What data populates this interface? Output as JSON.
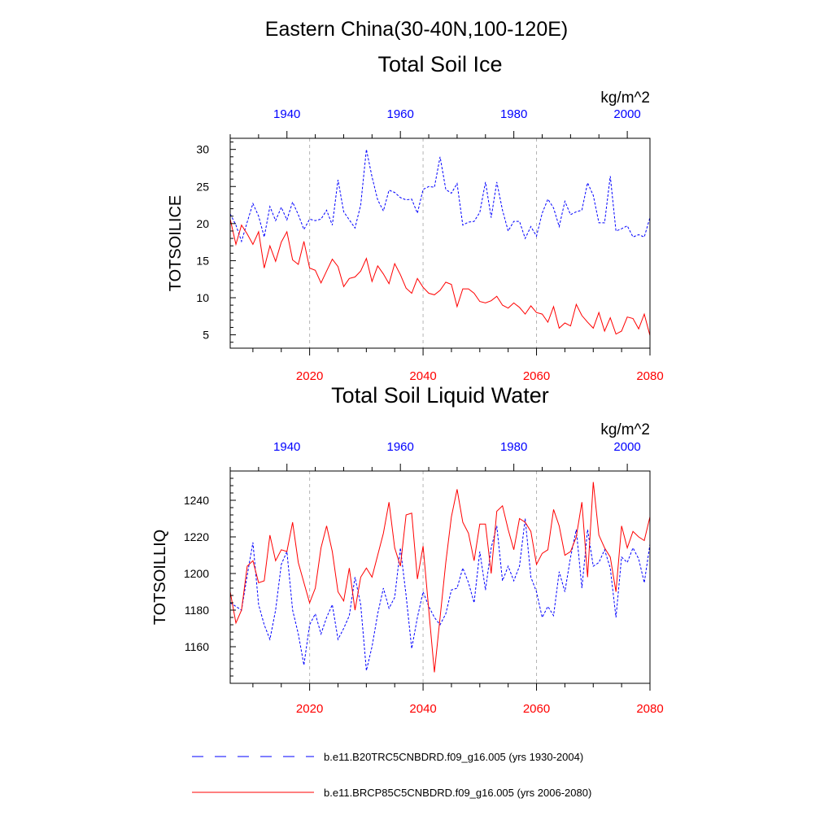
{
  "figure": {
    "title": "Eastern China(30-40N,100-120E)"
  },
  "colors": {
    "historical": "#0000ff",
    "future": "#ff0000",
    "frame": "#000000",
    "grid": "#b4b4b4"
  },
  "legend": {
    "placement": "bottom",
    "items": [
      {
        "label": "b.e11.B20TRC5CNBDRD.f09_g16.005 (yrs 1930-2004)",
        "color": "#0000ff",
        "style": "dashed"
      },
      {
        "label": "b.e11.BRCP85C5CNBDRD.f09_g16.005 (yrs 2006-2080)",
        "color": "#ff0000",
        "style": "solid"
      }
    ]
  },
  "chart_data": [
    {
      "type": "line",
      "title": "Total Soil Ice",
      "ylabel": "TOTSOILICE",
      "units": "kg/m^2",
      "grid": "vertical dashed at bottom-axis major ticks",
      "ylim": [
        3.2,
        31.5
      ],
      "yticks": [
        5,
        10,
        15,
        20,
        25,
        30
      ],
      "bottom_axis": {
        "xlim": [
          2006,
          2080
        ],
        "ticks": [
          2020,
          2040,
          2060,
          2080
        ],
        "color": "#ff0000"
      },
      "top_axis": {
        "xlim": [
          1930,
          2004
        ],
        "ticks": [
          1940,
          1960,
          1980,
          2000
        ],
        "color": "#0000ff"
      },
      "series": [
        {
          "axis": "top",
          "x": [
            1930,
            1931,
            1932,
            1933,
            1934,
            1935,
            1936,
            1937,
            1938,
            1939,
            1940,
            1941,
            1942,
            1943,
            1944,
            1945,
            1946,
            1947,
            1948,
            1949,
            1950,
            1951,
            1952,
            1953,
            1954,
            1955,
            1956,
            1957,
            1958,
            1959,
            1960,
            1961,
            1962,
            1963,
            1964,
            1965,
            1966,
            1967,
            1968,
            1969,
            1970,
            1971,
            1972,
            1973,
            1974,
            1975,
            1976,
            1977,
            1978,
            1979,
            1980,
            1981,
            1982,
            1983,
            1984,
            1985,
            1986,
            1987,
            1988,
            1989,
            1990,
            1991,
            1992,
            1993,
            1994,
            1995,
            1996,
            1997,
            1998,
            1999,
            2000,
            2001,
            2002,
            2003,
            2004
          ],
          "values": [
            21.3,
            19.8,
            17.6,
            20.2,
            22.7,
            21.0,
            18.2,
            22.3,
            20.4,
            22.2,
            20.5,
            22.9,
            21.2,
            19.2,
            20.6,
            20.4,
            20.6,
            21.8,
            19.8,
            25.9,
            21.6,
            20.5,
            19.4,
            22.5,
            30.0,
            26.3,
            23.2,
            21.7,
            24.5,
            24.2,
            23.5,
            23.2,
            23.3,
            21.4,
            24.6,
            25.0,
            24.9,
            29.0,
            24.6,
            24.1,
            25.4,
            19.8,
            20.2,
            20.3,
            21.5,
            25.6,
            20.8,
            25.6,
            21.8,
            19.0,
            20.3,
            20.3,
            18.0,
            19.6,
            18.3,
            21.4,
            23.3,
            22.1,
            19.6,
            23.0,
            21.2,
            21.6,
            21.8,
            25.5,
            23.8,
            20.1,
            20.1,
            26.4,
            19.0,
            19.3,
            19.7,
            18.2,
            18.5,
            18.2,
            20.8
          ]
        },
        {
          "axis": "bottom",
          "x": [
            2006,
            2007,
            2008,
            2009,
            2010,
            2011,
            2012,
            2013,
            2014,
            2015,
            2016,
            2017,
            2018,
            2019,
            2020,
            2021,
            2022,
            2023,
            2024,
            2025,
            2026,
            2027,
            2028,
            2029,
            2030,
            2031,
            2032,
            2033,
            2034,
            2035,
            2036,
            2037,
            2038,
            2039,
            2040,
            2041,
            2042,
            2043,
            2044,
            2045,
            2046,
            2047,
            2048,
            2049,
            2050,
            2051,
            2052,
            2053,
            2054,
            2055,
            2056,
            2057,
            2058,
            2059,
            2060,
            2061,
            2062,
            2063,
            2064,
            2065,
            2066,
            2067,
            2068,
            2069,
            2070,
            2071,
            2072,
            2073,
            2074,
            2075,
            2076,
            2077,
            2078,
            2079,
            2080
          ],
          "values": [
            20.6,
            17.2,
            19.8,
            18.6,
            17.2,
            18.9,
            14.0,
            17.0,
            14.9,
            17.5,
            18.9,
            15.1,
            14.5,
            17.6,
            14.0,
            13.7,
            12.0,
            13.6,
            15.2,
            14.2,
            11.5,
            12.6,
            12.8,
            13.6,
            15.3,
            12.2,
            14.3,
            13.2,
            11.9,
            14.6,
            13.1,
            11.3,
            10.6,
            12.6,
            11.4,
            10.6,
            10.4,
            11.0,
            12.1,
            11.8,
            8.8,
            11.2,
            11.2,
            10.6,
            9.5,
            9.3,
            9.6,
            10.2,
            9.0,
            8.6,
            9.3,
            8.7,
            7.8,
            8.9,
            8.0,
            7.8,
            6.7,
            8.8,
            5.9,
            6.6,
            6.2,
            9.1,
            7.6,
            6.7,
            5.9,
            8.0,
            5.5,
            7.3,
            5.1,
            5.5,
            7.4,
            7.2,
            5.8,
            7.8,
            4.9
          ]
        }
      ],
      "units_label": "kg/m^2"
    },
    {
      "type": "line",
      "title": "Total Soil Liquid Water",
      "ylabel": "TOTSOILLIQ",
      "units": "kg/m^2",
      "grid": "vertical dashed at bottom-axis major ticks",
      "ylim": [
        1140,
        1256
      ],
      "yticks": [
        1160,
        1180,
        1200,
        1220,
        1240
      ],
      "bottom_axis": {
        "xlim": [
          2006,
          2080
        ],
        "ticks": [
          2020,
          2040,
          2060,
          2080
        ],
        "color": "#ff0000"
      },
      "top_axis": {
        "xlim": [
          1930,
          2004
        ],
        "ticks": [
          1940,
          1960,
          1980,
          2000
        ],
        "color": "#0000ff"
      },
      "series": [
        {
          "axis": "top",
          "x": [
            1930,
            1931,
            1932,
            1933,
            1934,
            1935,
            1936,
            1937,
            1938,
            1939,
            1940,
            1941,
            1942,
            1943,
            1944,
            1945,
            1946,
            1947,
            1948,
            1949,
            1950,
            1951,
            1952,
            1953,
            1954,
            1955,
            1956,
            1957,
            1958,
            1959,
            1960,
            1961,
            1962,
            1963,
            1964,
            1965,
            1966,
            1967,
            1968,
            1969,
            1970,
            1971,
            1972,
            1973,
            1974,
            1975,
            1976,
            1977,
            1978,
            1979,
            1980,
            1981,
            1982,
            1983,
            1984,
            1985,
            1986,
            1987,
            1988,
            1989,
            1990,
            1991,
            1992,
            1993,
            1994,
            1995,
            1996,
            1997,
            1998,
            1999,
            2000,
            2001,
            2002,
            2003,
            2004
          ],
          "values": [
            1184,
            1182,
            1180,
            1199,
            1217,
            1183,
            1172,
            1164,
            1180,
            1205,
            1212,
            1180,
            1167,
            1150,
            1172,
            1178,
            1167,
            1176,
            1183,
            1164,
            1170,
            1177,
            1198,
            1183,
            1147,
            1160,
            1178,
            1192,
            1181,
            1187,
            1214,
            1188,
            1159,
            1176,
            1190,
            1182,
            1176,
            1172,
            1178,
            1191,
            1192,
            1203,
            1195,
            1184,
            1212,
            1191,
            1214,
            1226,
            1196,
            1204,
            1196,
            1204,
            1230,
            1198,
            1190,
            1176,
            1182,
            1177,
            1201,
            1190,
            1209,
            1224,
            1192,
            1224,
            1204,
            1206,
            1213,
            1203,
            1176,
            1209,
            1206,
            1214,
            1208,
            1195,
            1216
          ]
        },
        {
          "axis": "bottom",
          "x": [
            2006,
            2007,
            2008,
            2009,
            2010,
            2011,
            2012,
            2013,
            2014,
            2015,
            2016,
            2017,
            2018,
            2019,
            2020,
            2021,
            2022,
            2023,
            2024,
            2025,
            2026,
            2027,
            2028,
            2029,
            2030,
            2031,
            2032,
            2033,
            2034,
            2035,
            2036,
            2037,
            2038,
            2039,
            2040,
            2041,
            2042,
            2043,
            2044,
            2045,
            2046,
            2047,
            2048,
            2049,
            2050,
            2051,
            2052,
            2053,
            2054,
            2055,
            2056,
            2057,
            2058,
            2059,
            2060,
            2061,
            2062,
            2063,
            2064,
            2065,
            2066,
            2067,
            2068,
            2069,
            2070,
            2071,
            2072,
            2073,
            2074,
            2075,
            2076,
            2077,
            2078,
            2079,
            2080
          ],
          "values": [
            1190,
            1173,
            1180,
            1204,
            1207,
            1195,
            1196,
            1221,
            1207,
            1213,
            1212,
            1228,
            1206,
            1195,
            1184,
            1192,
            1214,
            1226,
            1212,
            1190,
            1185,
            1203,
            1180,
            1198,
            1203,
            1198,
            1210,
            1222,
            1239,
            1214,
            1204,
            1232,
            1233,
            1197,
            1215,
            1180,
            1146,
            1176,
            1206,
            1231,
            1246,
            1228,
            1222,
            1207,
            1227,
            1227,
            1200,
            1234,
            1237,
            1224,
            1213,
            1230,
            1228,
            1223,
            1205,
            1211,
            1213,
            1235,
            1226,
            1210,
            1212,
            1220,
            1239,
            1198,
            1250,
            1221,
            1214,
            1209,
            1190,
            1226,
            1214,
            1223,
            1220,
            1218,
            1231
          ]
        }
      ]
    }
  ]
}
